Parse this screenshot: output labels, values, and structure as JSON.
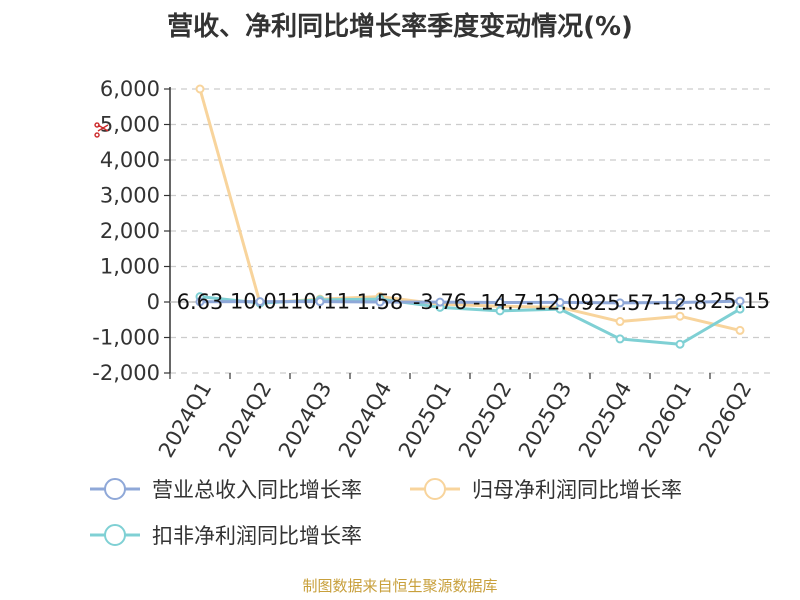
{
  "chart_data": {
    "type": "line",
    "title": "营收、净利同比增长率季度变动情况(%)",
    "categories": [
      "2024Q1",
      "2024Q2",
      "2024Q3",
      "2024Q4",
      "2025Q1",
      "2025Q2",
      "2025Q3",
      "2025Q4",
      "2026Q1",
      "2026Q2"
    ],
    "ylim": [
      -2000,
      6000
    ],
    "yticks": [
      -2000,
      -1000,
      0,
      1000,
      2000,
      3000,
      4000,
      5000,
      6000
    ],
    "ytick_labels": [
      "-2,000",
      "-1,000",
      "0",
      "1,000",
      "2,000",
      "3,000",
      "4,000",
      "5,000",
      "6,000"
    ],
    "grid": true,
    "legend_position": "bottom",
    "series": [
      {
        "name": "营业总收入同比增长率",
        "color": "#8fa8d8",
        "values": [
          6.63,
          10.01,
          10.11,
          1.58,
          -3.76,
          -14.7,
          -12.09,
          -25.57,
          -12.8,
          25.15
        ],
        "labels": [
          "6.63",
          "10.01",
          "10.11",
          "1.58",
          "-3.76",
          "-14.7",
          "-12.09",
          "-25.57",
          "-12.8",
          "25.15"
        ]
      },
      {
        "name": "归母净利润同比增长率",
        "color": "#f8d49c",
        "values": [
          6000,
          -30,
          80,
          150,
          -60,
          -120,
          -150,
          -550,
          -400,
          -800
        ]
      },
      {
        "name": "扣非净利润同比增长率",
        "color": "#7fd0d4",
        "values": [
          150,
          -30,
          60,
          80,
          -150,
          -250,
          -200,
          -1040,
          -1190,
          -200
        ]
      }
    ]
  },
  "source": "制图数据来自恒生聚源数据库"
}
